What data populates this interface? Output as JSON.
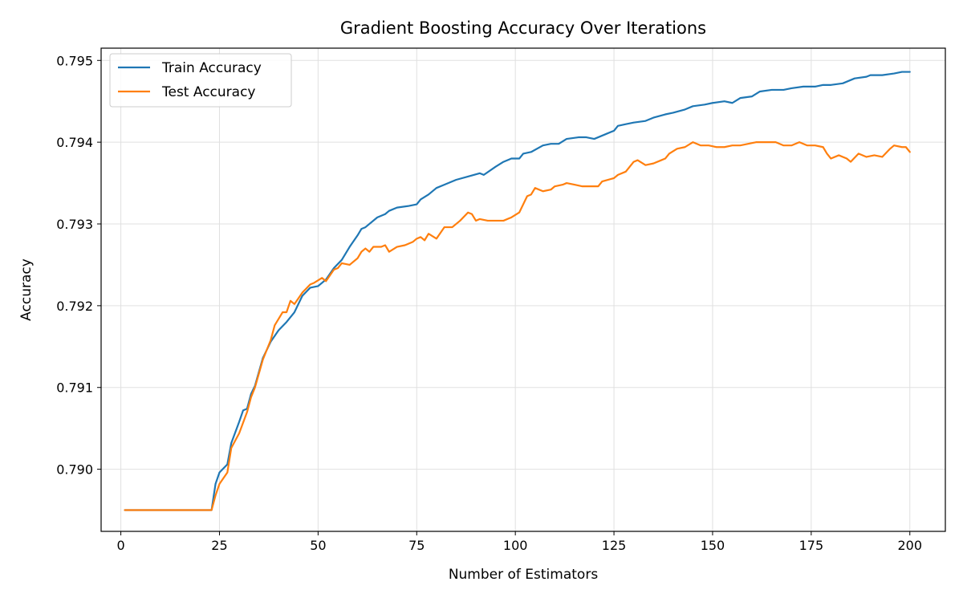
{
  "chart_data": {
    "type": "line",
    "title": "Gradient Boosting Accuracy Over Iterations",
    "xlabel": "Number of Estimators",
    "ylabel": "Accuracy",
    "xlim": [
      -5,
      209
    ],
    "ylim": [
      0.78924,
      0.79515
    ],
    "xticks": [
      0,
      25,
      50,
      75,
      100,
      125,
      150,
      175,
      200
    ],
    "yticks": [
      0.79,
      0.791,
      0.792,
      0.793,
      0.794,
      0.795
    ],
    "ytick_format": 3,
    "grid": true,
    "legend": "top-left",
    "series": [
      {
        "name": "Train Accuracy",
        "color": "#1f77b4",
        "points": [
          [
            1,
            0.7895
          ],
          [
            23,
            0.7895
          ],
          [
            24,
            0.78982
          ],
          [
            25,
            0.78996
          ],
          [
            27,
            0.79006
          ],
          [
            28,
            0.79032
          ],
          [
            30,
            0.79058
          ],
          [
            31,
            0.79072
          ],
          [
            32,
            0.79074
          ],
          [
            33,
            0.79092
          ],
          [
            34,
            0.79102
          ],
          [
            36,
            0.79136
          ],
          [
            38,
            0.79156
          ],
          [
            40,
            0.7917
          ],
          [
            42,
            0.7918
          ],
          [
            44,
            0.79192
          ],
          [
            46,
            0.79212
          ],
          [
            48,
            0.79222
          ],
          [
            50,
            0.79224
          ],
          [
            52,
            0.79232
          ],
          [
            54,
            0.79246
          ],
          [
            56,
            0.79256
          ],
          [
            58,
            0.79272
          ],
          [
            60,
            0.79286
          ],
          [
            61,
            0.79294
          ],
          [
            62,
            0.79296
          ],
          [
            65,
            0.79308
          ],
          [
            67,
            0.79312
          ],
          [
            68,
            0.79316
          ],
          [
            70,
            0.7932
          ],
          [
            73,
            0.79322
          ],
          [
            75,
            0.79324
          ],
          [
            76,
            0.7933
          ],
          [
            78,
            0.79336
          ],
          [
            80,
            0.79344
          ],
          [
            82,
            0.79348
          ],
          [
            85,
            0.79354
          ],
          [
            88,
            0.79358
          ],
          [
            91,
            0.79362
          ],
          [
            92,
            0.7936
          ],
          [
            95,
            0.7937
          ],
          [
            97,
            0.79376
          ],
          [
            99,
            0.7938
          ],
          [
            101,
            0.7938
          ],
          [
            102,
            0.79386
          ],
          [
            104,
            0.79388
          ],
          [
            107,
            0.79396
          ],
          [
            109,
            0.79398
          ],
          [
            111,
            0.79398
          ],
          [
            113,
            0.79404
          ],
          [
            116,
            0.79406
          ],
          [
            118,
            0.79406
          ],
          [
            120,
            0.79404
          ],
          [
            123,
            0.7941
          ],
          [
            125,
            0.79414
          ],
          [
            126,
            0.7942
          ],
          [
            128,
            0.79422
          ],
          [
            130,
            0.79424
          ],
          [
            133,
            0.79426
          ],
          [
            135,
            0.7943
          ],
          [
            138,
            0.79434
          ],
          [
            140,
            0.79436
          ],
          [
            143,
            0.7944
          ],
          [
            145,
            0.79444
          ],
          [
            148,
            0.79446
          ],
          [
            150,
            0.79448
          ],
          [
            153,
            0.7945
          ],
          [
            155,
            0.79448
          ],
          [
            157,
            0.79454
          ],
          [
            160,
            0.79456
          ],
          [
            162,
            0.79462
          ],
          [
            165,
            0.79464
          ],
          [
            168,
            0.79464
          ],
          [
            170,
            0.79466
          ],
          [
            173,
            0.79468
          ],
          [
            176,
            0.79468
          ],
          [
            178,
            0.7947
          ],
          [
            180,
            0.7947
          ],
          [
            183,
            0.79472
          ],
          [
            186,
            0.79478
          ],
          [
            189,
            0.7948
          ],
          [
            190,
            0.79482
          ],
          [
            193,
            0.79482
          ],
          [
            196,
            0.79484
          ],
          [
            198,
            0.79486
          ],
          [
            200,
            0.79486
          ]
        ]
      },
      {
        "name": "Test Accuracy",
        "color": "#ff7f0e",
        "points": [
          [
            1,
            0.7895
          ],
          [
            23,
            0.7895
          ],
          [
            24,
            0.78968
          ],
          [
            25,
            0.78982
          ],
          [
            27,
            0.78996
          ],
          [
            28,
            0.79026
          ],
          [
            30,
            0.79044
          ],
          [
            32,
            0.7907
          ],
          [
            33,
            0.79088
          ],
          [
            34,
            0.791
          ],
          [
            36,
            0.79134
          ],
          [
            38,
            0.79158
          ],
          [
            39,
            0.79176
          ],
          [
            41,
            0.79192
          ],
          [
            42,
            0.79192
          ],
          [
            43,
            0.79206
          ],
          [
            44,
            0.79202
          ],
          [
            46,
            0.79216
          ],
          [
            48,
            0.79226
          ],
          [
            49,
            0.79228
          ],
          [
            51,
            0.79234
          ],
          [
            52,
            0.7923
          ],
          [
            54,
            0.79244
          ],
          [
            55,
            0.79246
          ],
          [
            56,
            0.79252
          ],
          [
            58,
            0.7925
          ],
          [
            60,
            0.79258
          ],
          [
            61,
            0.79266
          ],
          [
            62,
            0.7927
          ],
          [
            63,
            0.79266
          ],
          [
            64,
            0.79272
          ],
          [
            66,
            0.79272
          ],
          [
            67,
            0.79274
          ],
          [
            68,
            0.79266
          ],
          [
            70,
            0.79272
          ],
          [
            72,
            0.79274
          ],
          [
            74,
            0.79278
          ],
          [
            75,
            0.79282
          ],
          [
            76,
            0.79284
          ],
          [
            77,
            0.7928
          ],
          [
            78,
            0.79288
          ],
          [
            80,
            0.79282
          ],
          [
            82,
            0.79296
          ],
          [
            84,
            0.79296
          ],
          [
            86,
            0.79304
          ],
          [
            88,
            0.79314
          ],
          [
            89,
            0.79312
          ],
          [
            90,
            0.79304
          ],
          [
            91,
            0.79306
          ],
          [
            93,
            0.79304
          ],
          [
            95,
            0.79304
          ],
          [
            97,
            0.79304
          ],
          [
            99,
            0.79308
          ],
          [
            101,
            0.79314
          ],
          [
            103,
            0.79334
          ],
          [
            104,
            0.79336
          ],
          [
            105,
            0.79344
          ],
          [
            107,
            0.7934
          ],
          [
            109,
            0.79342
          ],
          [
            110,
            0.79346
          ],
          [
            112,
            0.79348
          ],
          [
            113,
            0.7935
          ],
          [
            115,
            0.79348
          ],
          [
            117,
            0.79346
          ],
          [
            119,
            0.79346
          ],
          [
            121,
            0.79346
          ],
          [
            122,
            0.79352
          ],
          [
            125,
            0.79356
          ],
          [
            126,
            0.7936
          ],
          [
            128,
            0.79364
          ],
          [
            130,
            0.79376
          ],
          [
            131,
            0.79378
          ],
          [
            133,
            0.79372
          ],
          [
            135,
            0.79374
          ],
          [
            137,
            0.79378
          ],
          [
            138,
            0.7938
          ],
          [
            139,
            0.79386
          ],
          [
            141,
            0.79392
          ],
          [
            143,
            0.79394
          ],
          [
            145,
            0.794
          ],
          [
            147,
            0.79396
          ],
          [
            149,
            0.79396
          ],
          [
            151,
            0.79394
          ],
          [
            153,
            0.79394
          ],
          [
            155,
            0.79396
          ],
          [
            157,
            0.79396
          ],
          [
            159,
            0.79398
          ],
          [
            161,
            0.794
          ],
          [
            163,
            0.794
          ],
          [
            166,
            0.794
          ],
          [
            168,
            0.79396
          ],
          [
            170,
            0.79396
          ],
          [
            172,
            0.794
          ],
          [
            174,
            0.79396
          ],
          [
            176,
            0.79396
          ],
          [
            178,
            0.79394
          ],
          [
            179,
            0.79386
          ],
          [
            180,
            0.7938
          ],
          [
            182,
            0.79384
          ],
          [
            184,
            0.7938
          ],
          [
            185,
            0.79376
          ],
          [
            187,
            0.79386
          ],
          [
            189,
            0.79382
          ],
          [
            191,
            0.79384
          ],
          [
            193,
            0.79382
          ],
          [
            195,
            0.79392
          ],
          [
            196,
            0.79396
          ],
          [
            198,
            0.79394
          ],
          [
            199,
            0.79394
          ],
          [
            200,
            0.79388
          ]
        ]
      }
    ]
  }
}
